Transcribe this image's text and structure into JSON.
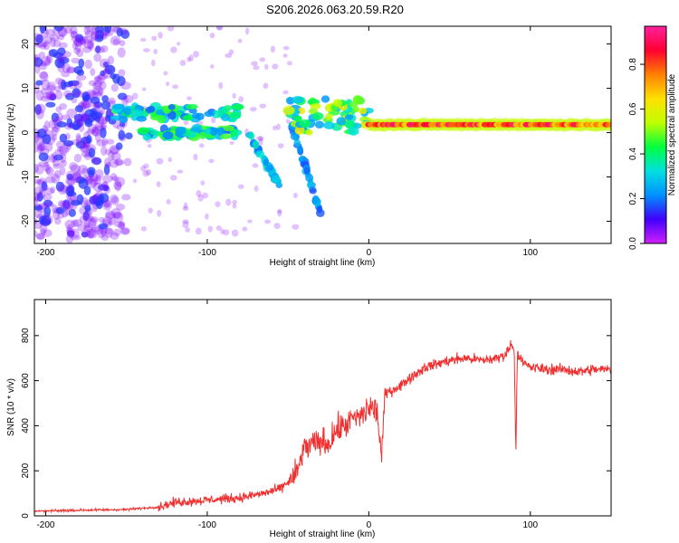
{
  "title": "S206.2026.063.20.59.R20",
  "colors": {
    "snr_line": "#f03030",
    "frame": "#000000"
  },
  "chart_data": [
    {
      "type": "heatmap",
      "name": "spectrogram",
      "xlabel": "Height of straight line (km)",
      "ylabel": "Frequency (Hz)",
      "xlim": [
        -207,
        150
      ],
      "ylim": [
        -25,
        24
      ],
      "xticks": [
        -200,
        -100,
        0,
        100
      ],
      "yticks": [
        -20,
        -10,
        0,
        10,
        20
      ],
      "colorbar": {
        "label": "Normalized spectral amplitude",
        "range": [
          0,
          0.97
        ],
        "ticks": [
          "0.0",
          "0.2",
          "0.4",
          "0.6",
          "0.8"
        ],
        "tick_values": [
          0.0,
          0.2,
          0.4,
          0.6,
          0.8
        ],
        "colors": [
          "#d020ff",
          "#4000ff",
          "#0090ff",
          "#00e0e0",
          "#00ff40",
          "#c0ff00",
          "#ffe000",
          "#ff8000",
          "#ff0030",
          "#ff20a0"
        ]
      },
      "carrier": {
        "x_start": 0,
        "x_end": 150,
        "freq_hz": 1.8,
        "amplitude": 0.9
      },
      "features": [
        {
          "segment": "noise",
          "x_range": [
            -207,
            -145
          ],
          "freq_range": [
            -24,
            24
          ],
          "amplitude": 0.15
        },
        {
          "segment": "upper-branch",
          "x_range": [
            -160,
            -80
          ],
          "freq_range": [
            3,
            6
          ],
          "amplitude": 0.35
        },
        {
          "segment": "lower-branch",
          "x_range": [
            -140,
            -80
          ],
          "freq_range": [
            -1,
            1
          ],
          "amplitude": 0.35
        },
        {
          "segment": "descending-streak",
          "x_range": [
            -75,
            -55
          ],
          "freq_range": [
            -12,
            0
          ],
          "amplitude": 0.3
        },
        {
          "segment": "descending-streak",
          "x_range": [
            -48,
            -30
          ],
          "freq_range": [
            -18,
            2
          ],
          "amplitude": 0.25
        },
        {
          "segment": "transition",
          "x_range": [
            -50,
            0
          ],
          "freq_range": [
            0,
            8
          ],
          "amplitude": 0.45
        }
      ]
    },
    {
      "type": "line",
      "name": "snr",
      "xlabel": "Height of straight line (km)",
      "ylabel": "SNR (10 * v/v)",
      "xlim": [
        -207,
        150
      ],
      "ylim": [
        0,
        960
      ],
      "xticks": [
        -200,
        -100,
        0,
        100
      ],
      "yticks": [
        0,
        200,
        400,
        600,
        800
      ],
      "series": [
        {
          "name": "SNR",
          "x": [
            -207,
            -180,
            -150,
            -130,
            -120,
            -100,
            -80,
            -65,
            -55,
            -45,
            -40,
            -30,
            -25,
            -20,
            -15,
            -10,
            -5,
            0,
            5,
            8,
            10,
            15,
            20,
            25,
            35,
            50,
            60,
            70,
            80,
            85,
            88,
            90,
            91,
            92,
            95,
            100,
            110,
            120,
            130,
            140,
            150
          ],
          "y": [
            20,
            25,
            28,
            40,
            60,
            70,
            80,
            100,
            120,
            180,
            300,
            330,
            320,
            380,
            400,
            430,
            440,
            480,
            470,
            260,
            540,
            560,
            580,
            610,
            660,
            690,
            700,
            690,
            700,
            720,
            760,
            750,
            280,
            730,
            680,
            660,
            650,
            650,
            640,
            650,
            650
          ]
        }
      ]
    }
  ]
}
